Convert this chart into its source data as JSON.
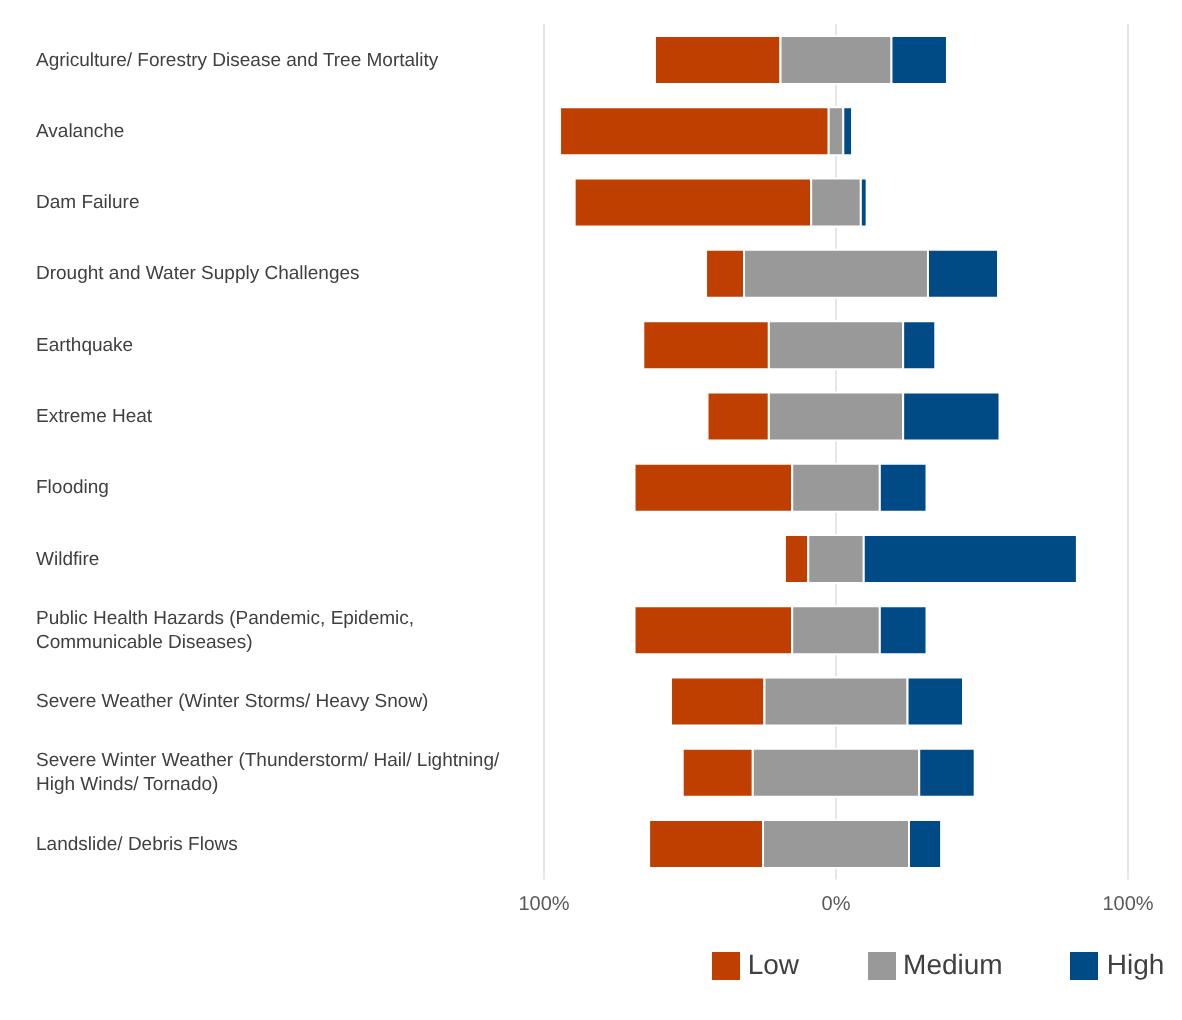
{
  "chart_data": {
    "type": "bar",
    "orientation": "horizontal",
    "categories": [
      "Agriculture/ Forestry Disease and Tree Mortality",
      "Avalanche",
      "Dam Failure",
      "Drought and Water Supply Challenges",
      "Earthquake",
      "Extreme Heat",
      "Flooding",
      "Wildfire",
      "Public Health Hazards (Pandemic, Epidemic, Communicable Diseases)",
      "Severe Weather (Winter Storms/ Heavy Snow)",
      "Severe Winter Weather (Thunderstorm/ Hail/ Lightning/ High Winds/ Tornado)",
      "Landslide/ Debris Flows"
    ],
    "series": [
      {
        "name": "Low",
        "color": "#bf3f00",
        "values": [
          43,
          92,
          81,
          13,
          43,
          21,
          54,
          8,
          54,
          32,
          24,
          39
        ],
        "base": [
          -62,
          -94.5,
          -89.5,
          -44.5,
          -66,
          -44,
          -69,
          -17.5,
          -69,
          -56.5,
          -52.5,
          -64
        ]
      },
      {
        "name": "Medium",
        "color": "#999999",
        "values": [
          38,
          5,
          17,
          63,
          46,
          46,
          30,
          19,
          30,
          49,
          57,
          50
        ],
        "base": [
          -19,
          -2.5,
          -8.5,
          -31.5,
          -23,
          -23,
          -15,
          -9.5,
          -15,
          -24.5,
          -28.5,
          -25
        ]
      },
      {
        "name": "High",
        "color": "#004b85",
        "values": [
          19,
          3,
          2,
          24,
          11,
          33,
          16,
          73,
          16,
          19,
          19,
          11
        ],
        "base": [
          19,
          2.5,
          8.5,
          31.5,
          23,
          23,
          15,
          9.5,
          15,
          24.5,
          28.5,
          25
        ]
      }
    ],
    "xlim": [
      -100,
      100
    ],
    "xticks": [
      {
        "value": -100,
        "label": "100%"
      },
      {
        "value": 0,
        "label": "0%"
      },
      {
        "value": 100,
        "label": "100%"
      }
    ],
    "grid": "x",
    "legend": "bottom"
  }
}
